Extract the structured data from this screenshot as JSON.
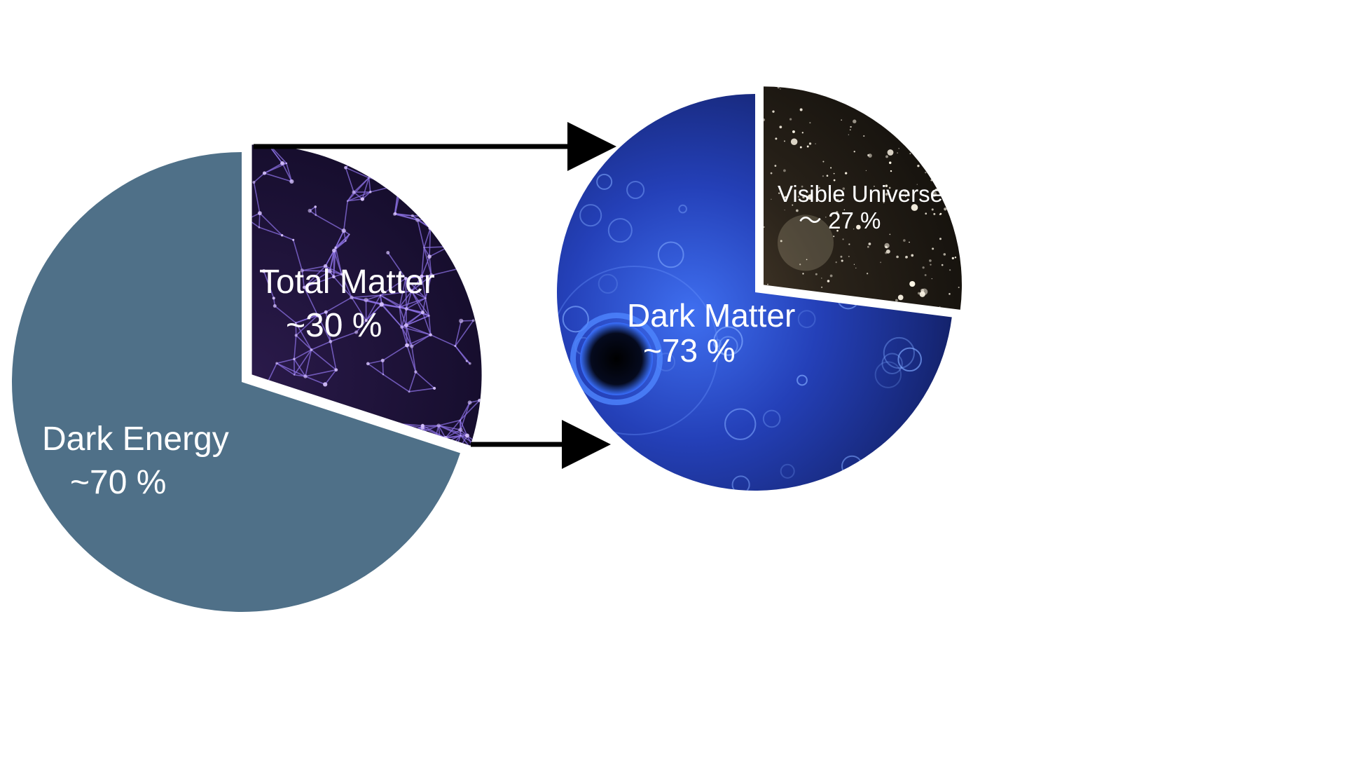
{
  "chart_data": [
    {
      "type": "pie",
      "slices": [
        {
          "label": "Dark Energy",
          "value_label": "~70 %",
          "value": 70,
          "exploded": false,
          "texture": "paper",
          "color": "#4f7088"
        },
        {
          "label": "Total Matter",
          "value_label": "~30 %",
          "value": 30,
          "exploded": true,
          "texture": "cosmic-web",
          "color": "#1a0f33"
        }
      ]
    },
    {
      "type": "pie",
      "slices": [
        {
          "label": "Dark Matter",
          "value_label": "~73 %",
          "value": 73,
          "exploded": false,
          "texture": "blue-space",
          "color": "#1f3a96"
        },
        {
          "label": "Visible Universe",
          "value_label": "～ 27 %",
          "value": 27,
          "exploded": true,
          "texture": "galaxy-field",
          "color": "#1b1712"
        }
      ]
    }
  ],
  "arrows": {
    "count": 2,
    "color": "#000000",
    "direction": "right"
  }
}
